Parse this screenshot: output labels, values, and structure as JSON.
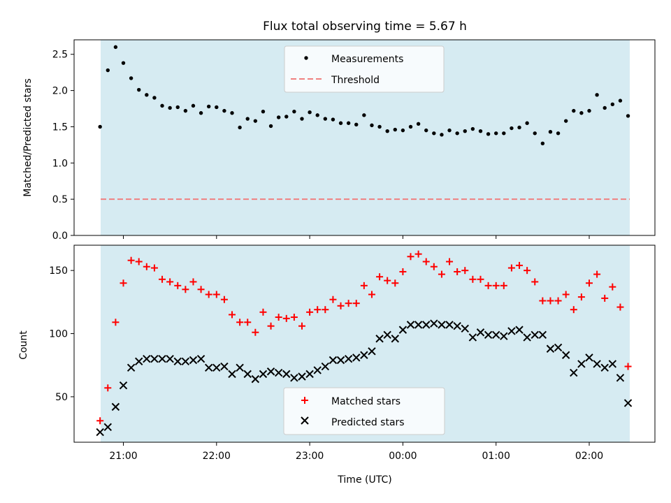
{
  "chart_data": [
    {
      "type": "scatter",
      "title": "Flux total observing time = 5.67 h",
      "xlabel": "",
      "ylabel": "Matched/Predicted stars",
      "ylim": [
        0,
        2.7
      ],
      "yticks": [
        "0.0",
        "0.5",
        "1.0",
        "1.5",
        "2.0",
        "2.5"
      ],
      "threshold": 0.5,
      "legend": [
        "Measurements",
        "Threshold"
      ],
      "legend_placement": "top-center",
      "colors": {
        "points": "#000000",
        "threshold": "#f08080",
        "band": "#add8e6"
      },
      "series": [
        {
          "name": "Measurements",
          "x": [
            "20:45",
            "20:50",
            "20:55",
            "21:00",
            "21:05",
            "21:10",
            "21:15",
            "21:20",
            "21:25",
            "21:30",
            "21:35",
            "21:40",
            "21:45",
            "21:50",
            "21:55",
            "22:00",
            "22:05",
            "22:10",
            "22:15",
            "22:20",
            "22:25",
            "22:30",
            "22:35",
            "22:40",
            "22:45",
            "22:50",
            "22:55",
            "23:00",
            "23:05",
            "23:10",
            "23:15",
            "23:20",
            "23:25",
            "23:30",
            "23:35",
            "23:40",
            "23:45",
            "23:50",
            "23:55",
            "00:00",
            "00:05",
            "00:10",
            "00:15",
            "00:20",
            "00:25",
            "00:30",
            "00:35",
            "00:40",
            "00:45",
            "00:50",
            "00:55",
            "01:00",
            "01:05",
            "01:10",
            "01:15",
            "01:20",
            "01:25",
            "01:30",
            "01:35",
            "01:40",
            "01:45",
            "01:50",
            "01:55",
            "02:00",
            "02:05",
            "02:10",
            "02:15",
            "02:20",
            "02:25"
          ],
          "values": [
            1.5,
            2.28,
            2.6,
            2.38,
            2.17,
            2.01,
            1.94,
            1.9,
            1.79,
            1.76,
            1.77,
            1.72,
            1.79,
            1.69,
            1.78,
            1.77,
            1.72,
            1.69,
            1.49,
            1.61,
            1.58,
            1.71,
            1.51,
            1.63,
            1.64,
            1.71,
            1.61,
            1.7,
            1.66,
            1.61,
            1.6,
            1.55,
            1.55,
            1.53,
            1.66,
            1.52,
            1.5,
            1.44,
            1.46,
            1.45,
            1.5,
            1.54,
            1.45,
            1.41,
            1.39,
            1.45,
            1.41,
            1.44,
            1.47,
            1.44,
            1.4,
            1.41,
            1.41,
            1.48,
            1.49,
            1.55,
            1.41,
            1.27,
            1.43,
            1.41,
            1.58,
            1.72,
            1.69,
            1.72,
            1.94,
            1.76,
            1.81,
            1.86,
            1.65
          ]
        }
      ]
    },
    {
      "type": "scatter",
      "title": "",
      "xlabel": "Time (UTC)",
      "ylabel": "Count",
      "ylim": [
        14,
        170
      ],
      "yticks": [
        "50",
        "100",
        "150"
      ],
      "xticks": [
        "21:00",
        "22:00",
        "23:00",
        "00:00",
        "01:00",
        "02:00"
      ],
      "legend": [
        "Matched stars",
        "Predicted stars"
      ],
      "legend_placement": "bottom-center",
      "colors": {
        "matched": "#ff0000",
        "predicted": "#000000",
        "band": "#add8e6"
      },
      "x": [
        "20:45",
        "20:50",
        "20:55",
        "21:00",
        "21:05",
        "21:10",
        "21:15",
        "21:20",
        "21:25",
        "21:30",
        "21:35",
        "21:40",
        "21:45",
        "21:50",
        "21:55",
        "22:00",
        "22:05",
        "22:10",
        "22:15",
        "22:20",
        "22:25",
        "22:30",
        "22:35",
        "22:40",
        "22:45",
        "22:50",
        "22:55",
        "23:00",
        "23:05",
        "23:10",
        "23:15",
        "23:20",
        "23:25",
        "23:30",
        "23:35",
        "23:40",
        "23:45",
        "23:50",
        "23:55",
        "00:00",
        "00:05",
        "00:10",
        "00:15",
        "00:20",
        "00:25",
        "00:30",
        "00:35",
        "00:40",
        "00:45",
        "00:50",
        "00:55",
        "01:00",
        "01:05",
        "01:10",
        "01:15",
        "01:20",
        "01:25",
        "01:30",
        "01:35",
        "01:40",
        "01:45",
        "01:50",
        "01:55",
        "02:00",
        "02:05",
        "02:10",
        "02:15",
        "02:20",
        "02:25"
      ],
      "series": [
        {
          "name": "Matched stars",
          "marker": "+",
          "values": [
            31,
            57,
            109,
            140,
            158,
            157,
            153,
            152,
            143,
            141,
            138,
            135,
            141,
            135,
            131,
            131,
            127,
            115,
            109,
            109,
            101,
            117,
            106,
            113,
            112,
            113,
            106,
            117,
            119,
            119,
            127,
            122,
            124,
            124,
            138,
            131,
            145,
            142,
            140,
            149,
            161,
            163,
            157,
            153,
            147,
            157,
            149,
            150,
            143,
            143,
            138,
            138,
            138,
            152,
            154,
            150,
            141,
            126,
            126,
            126,
            131,
            119,
            129,
            140,
            147,
            128,
            137,
            121,
            74
          ]
        },
        {
          "name": "Predicted stars",
          "marker": "x",
          "values": [
            22,
            26,
            42,
            59,
            73,
            78,
            80,
            80,
            80,
            80,
            78,
            78,
            79,
            80,
            73,
            73,
            74,
            68,
            73,
            68,
            64,
            68,
            70,
            69,
            68,
            65,
            66,
            68,
            71,
            74,
            79,
            79,
            80,
            81,
            83,
            86,
            96,
            99,
            96,
            103,
            107,
            107,
            107,
            108,
            107,
            107,
            106,
            104,
            97,
            101,
            99,
            99,
            98,
            102,
            103,
            97,
            99,
            99,
            88,
            89,
            83,
            69,
            76,
            81,
            76,
            73,
            76,
            65,
            45
          ]
        }
      ]
    }
  ]
}
